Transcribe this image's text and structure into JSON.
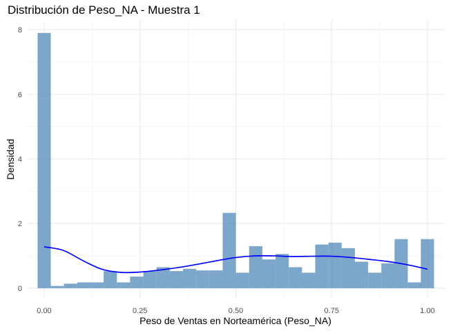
{
  "chart_data": {
    "type": "bar",
    "title": "Distribución de Peso_NA - Muestra 1",
    "xlabel": "Peso de Ventas en Norteamérica (Peso_NA)",
    "ylabel": "Densidad",
    "xlim": [
      -0.045,
      1.045
    ],
    "ylim": [
      -0.3,
      8.3
    ],
    "x_ticks": [
      0.0,
      0.25,
      0.5,
      0.75,
      1.0
    ],
    "x_tick_labels": [
      "0.00",
      "0.25",
      "0.50",
      "0.75",
      "1.00"
    ],
    "y_ticks": [
      0,
      2,
      4,
      6,
      8
    ],
    "y_tick_labels": [
      "0",
      "2",
      "4",
      "6",
      "8"
    ],
    "grid": true,
    "bin_width": 0.0345,
    "histogram": {
      "bin_centers": [
        0.0,
        0.0345,
        0.069,
        0.1035,
        0.138,
        0.1725,
        0.207,
        0.2415,
        0.276,
        0.3105,
        0.345,
        0.3795,
        0.414,
        0.4485,
        0.483,
        0.5175,
        0.552,
        0.5865,
        0.621,
        0.6555,
        0.69,
        0.7245,
        0.759,
        0.7935,
        0.828,
        0.8625,
        0.897,
        0.9315,
        0.966,
        1.0
      ],
      "densities": [
        7.9,
        0.07,
        0.14,
        0.18,
        0.18,
        0.53,
        0.18,
        0.36,
        0.53,
        0.65,
        0.53,
        0.6,
        0.55,
        0.55,
        2.33,
        0.48,
        1.3,
        0.89,
        1.06,
        0.65,
        0.48,
        1.35,
        1.41,
        1.24,
        0.82,
        0.48,
        0.77,
        1.52,
        0.18,
        1.52
      ],
      "color": "#4682b4",
      "opacity": 0.7
    },
    "density_curve": {
      "x": [
        0.0,
        0.05,
        0.1,
        0.15,
        0.2,
        0.25,
        0.3,
        0.35,
        0.4,
        0.45,
        0.5,
        0.55,
        0.6,
        0.65,
        0.7,
        0.75,
        0.8,
        0.85,
        0.9,
        0.95,
        1.0
      ],
      "y": [
        1.28,
        1.17,
        0.86,
        0.59,
        0.49,
        0.5,
        0.56,
        0.64,
        0.74,
        0.85,
        0.95,
        1.0,
        1.0,
        0.98,
        0.99,
        0.99,
        0.95,
        0.89,
        0.82,
        0.72,
        0.59
      ],
      "color": "#0000ff"
    }
  }
}
